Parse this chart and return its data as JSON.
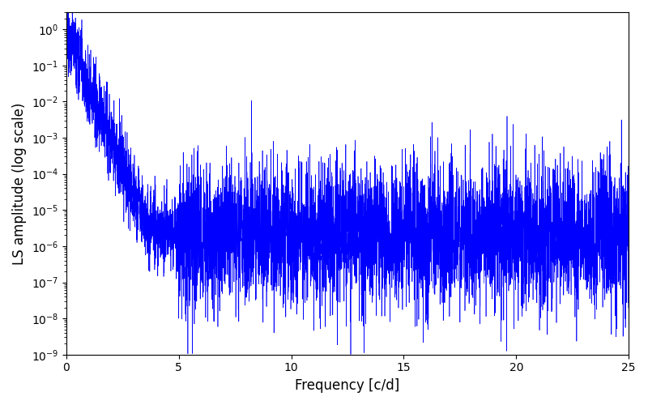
{
  "xlabel": "Frequency [c/d]",
  "ylabel": "LS amplitude (log scale)",
  "line_color": "#0000ff",
  "xlim": [
    0,
    25
  ],
  "ylim": [
    1e-09,
    3.0
  ],
  "background_color": "#ffffff",
  "figsize": [
    8.0,
    5.0
  ],
  "dpi": 100,
  "n_points": 6000,
  "seed": 77,
  "peak_amp": 0.9,
  "noise_floor": 2e-06,
  "decay_rate": 3.5,
  "noise_std_low": 1.2,
  "noise_std_high": 2.2
}
